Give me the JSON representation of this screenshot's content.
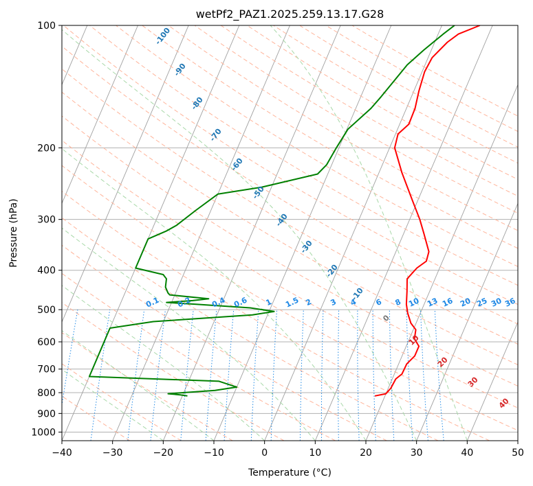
{
  "chart_data": {
    "type": "line",
    "title": "wetPf2_PAZ1.2025.259.13.17.G28",
    "xlabel": "Temperature (°C)",
    "ylabel": "Pressure (hPa)",
    "xlim": [
      -40,
      50
    ],
    "ylim": [
      1050,
      100
    ],
    "yscale": "log",
    "x_ticks": [
      "−40",
      "−30",
      "−20",
      "−10",
      "0",
      "10",
      "20",
      "30",
      "40",
      "50"
    ],
    "y_ticks": [
      "100",
      "200",
      "300",
      "400",
      "500",
      "600",
      "700",
      "800",
      "900",
      "1000"
    ],
    "grid": true,
    "series": [
      {
        "name": "",
        "color": "#ff0000",
        "points": [
          [
            18,
            815
          ],
          [
            20,
            805
          ],
          [
            20.5,
            780
          ],
          [
            20.7,
            740
          ],
          [
            21.5,
            720
          ],
          [
            21.6,
            680
          ],
          [
            22.5,
            650
          ],
          [
            22.5,
            615
          ],
          [
            21,
            590
          ],
          [
            20.5,
            560
          ],
          [
            19,
            540
          ],
          [
            17.5,
            510
          ],
          [
            16.5,
            485
          ],
          [
            15.5,
            450
          ],
          [
            14.5,
            420
          ],
          [
            15.5,
            395
          ],
          [
            16.8,
            380
          ],
          [
            16.5,
            360
          ],
          [
            14,
            325
          ],
          [
            12,
            300
          ],
          [
            9,
            270
          ],
          [
            4.5,
            230
          ],
          [
            1,
            200
          ],
          [
            0.5,
            185
          ],
          [
            1.8,
            175
          ],
          [
            1.7,
            160
          ],
          [
            1,
            145
          ],
          [
            0.5,
            130
          ],
          [
            0.8,
            120
          ],
          [
            2.5,
            110
          ],
          [
            4,
            105
          ],
          [
            7.5,
            100
          ]
        ]
      },
      {
        "name": "",
        "color": "#008000",
        "points": [
          [
            -19,
            815
          ],
          [
            -20.5,
            810
          ],
          [
            -23,
            805
          ],
          [
            -14,
            790
          ],
          [
            -10,
            775
          ],
          [
            -14,
            750
          ],
          [
            -40,
            730
          ],
          [
            -40,
            555
          ],
          [
            -32,
            535
          ],
          [
            -13,
            515
          ],
          [
            -9,
            505
          ],
          [
            -14,
            495
          ],
          [
            -25,
            485
          ],
          [
            -31,
            480
          ],
          [
            -26,
            475
          ],
          [
            -23,
            470
          ],
          [
            -31,
            460
          ],
          [
            -31.5,
            455
          ],
          [
            -32.5,
            440
          ],
          [
            -33,
            420
          ],
          [
            -34,
            410
          ],
          [
            -40,
            395
          ],
          [
            -40,
            335
          ],
          [
            -37,
            320
          ],
          [
            -35.5,
            310
          ],
          [
            -33,
            285
          ],
          [
            -30,
            260
          ],
          [
            -22,
            250
          ],
          [
            -12,
            232
          ],
          [
            -11,
            220
          ],
          [
            -10.5,
            200
          ],
          [
            -9.8,
            180
          ],
          [
            -7,
            160
          ],
          [
            -6,
            150
          ],
          [
            -3.5,
            125
          ],
          [
            -1.5,
            115
          ],
          [
            1,
            105
          ],
          [
            2.5,
            100
          ]
        ]
      }
    ],
    "dry_adiabat_labels": [
      "-100",
      "-90",
      "-80",
      "-70",
      "-60",
      "-50",
      "-40",
      "-30",
      "-20",
      "-10"
    ],
    "moist_adiabat_labels": [
      "0",
      "10",
      "20",
      "30",
      "40"
    ],
    "mixing_ratio_labels": [
      "0.1",
      "0.2",
      "0.4",
      "0.6",
      "1",
      "1.5",
      "2",
      "3",
      "4",
      "6",
      "8",
      "10",
      "13",
      "16",
      "20",
      "25",
      "30",
      "36"
    ],
    "colors": {
      "temperature": "#ff0000",
      "dewpoint": "#008000",
      "isotherm": "#a0a0a0",
      "isobar": "#b0b0b0",
      "dry_adiabat": "#ffb49a",
      "moist_adiabat": "#a8d8a8",
      "mixing_ratio": "#1e88e5",
      "dry_label": "#1f77b4",
      "moist_label": "#d62728",
      "mixing_label": "#1e88e5"
    }
  }
}
